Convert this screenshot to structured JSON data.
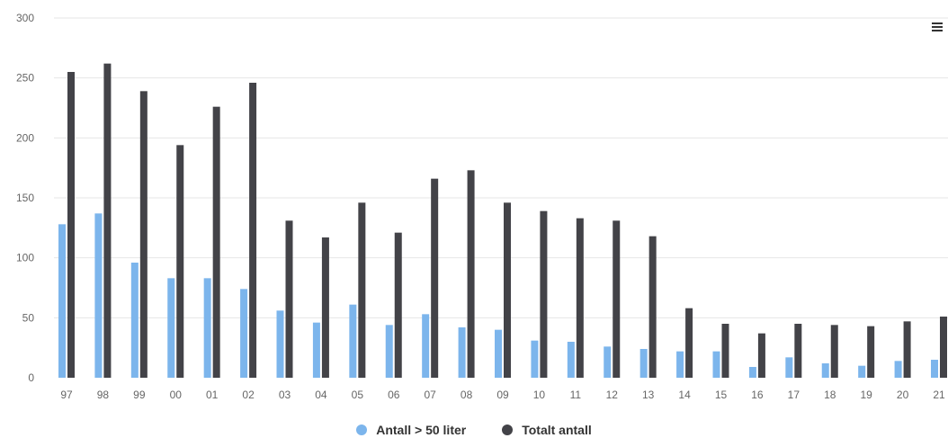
{
  "chart_data": {
    "type": "bar",
    "categories": [
      "97",
      "98",
      "99",
      "00",
      "01",
      "02",
      "03",
      "04",
      "05",
      "06",
      "07",
      "08",
      "09",
      "10",
      "11",
      "12",
      "13",
      "14",
      "15",
      "16",
      "17",
      "18",
      "19",
      "20",
      "21"
    ],
    "series": [
      {
        "name": "Antall > 50 liter",
        "color": "#7cb5ec",
        "values": [
          128,
          137,
          96,
          83,
          83,
          74,
          56,
          46,
          61,
          44,
          53,
          42,
          40,
          31,
          30,
          26,
          24,
          22,
          22,
          9,
          17,
          12,
          10,
          14,
          15
        ]
      },
      {
        "name": "Totalt antall",
        "color": "#434348",
        "values": [
          255,
          262,
          239,
          194,
          226,
          246,
          131,
          117,
          146,
          121,
          166,
          173,
          146,
          139,
          133,
          131,
          118,
          58,
          45,
          37,
          45,
          44,
          43,
          47,
          51
        ]
      }
    ],
    "yticks": [
      "0",
      "50",
      "100",
      "150",
      "200",
      "250",
      "300"
    ],
    "ylim": [
      0,
      300
    ],
    "grid": true,
    "legend_position": "bottom-center"
  },
  "ui": {
    "menu_icon": "hamburger-menu-icon"
  }
}
